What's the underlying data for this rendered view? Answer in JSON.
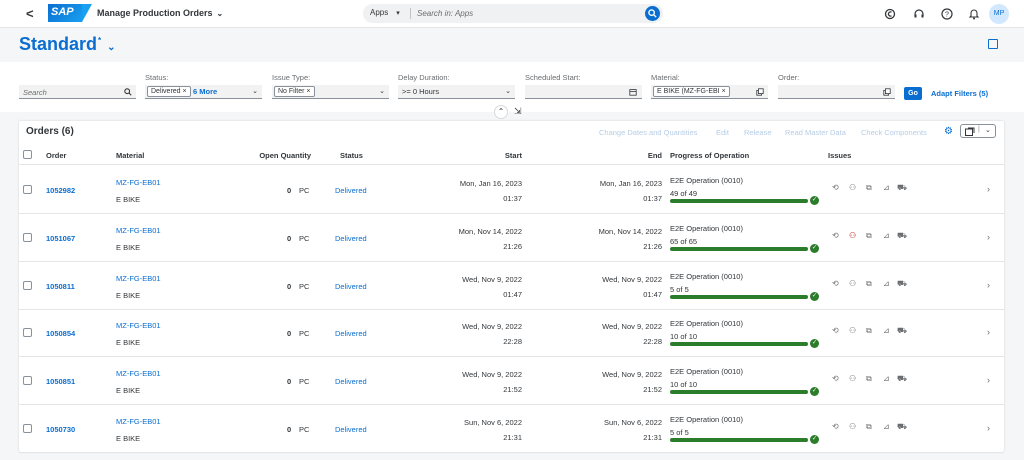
{
  "shell": {
    "back": "<",
    "logo": "SAP",
    "app_title": "Manage Production Orders",
    "search_scope": "Apps",
    "search_placeholder": "Search in: Apps",
    "user_initials": "MP"
  },
  "variant": {
    "title": "Standard",
    "modified": "*"
  },
  "filters": {
    "search_placeholder": "Search",
    "status_label": "Status:",
    "status_token": "Delivered",
    "status_more": "6 More",
    "issue_label": "Issue Type:",
    "issue_token": "No Filter",
    "delay_label": "Delay Duration:",
    "delay_value": ">= 0 Hours",
    "sched_label": "Scheduled Start:",
    "material_label": "Material:",
    "material_token": "E BIKE (MZ-FG-EBI",
    "order_label": "Order:",
    "go": "Go",
    "adapt": "Adapt Filters (5)"
  },
  "table": {
    "title": "Orders (6)",
    "toolbar": [
      "Change Dates and Quantities",
      "Edit",
      "Release",
      "Read Master Data",
      "Check Components"
    ],
    "columns": {
      "order": "Order",
      "material": "Material",
      "open_qty": "Open Quantity",
      "status": "Status",
      "start": "Start",
      "end": "End",
      "progress": "Progress of Operation",
      "issues": "Issues"
    },
    "rows": [
      {
        "order": "1052982",
        "material_id": "MZ-FG-EB01",
        "material_name": "E BIKE",
        "qty": "0",
        "unit": "PC",
        "status": "Delivered",
        "start_date": "Mon, Jan 16, 2023",
        "start_time": "01:37",
        "end_date": "Mon, Jan 16, 2023",
        "end_time": "01:37",
        "op": "E2E Operation (0010)",
        "op_count": "49 of 49",
        "progress": 1.0,
        "red_issue": false
      },
      {
        "order": "1051067",
        "material_id": "MZ-FG-EB01",
        "material_name": "E BIKE",
        "qty": "0",
        "unit": "PC",
        "status": "Delivered",
        "start_date": "Mon, Nov 14, 2022",
        "start_time": "21:26",
        "end_date": "Mon, Nov 14, 2022",
        "end_time": "21:26",
        "op": "E2E Operation (0010)",
        "op_count": "65 of 65",
        "progress": 1.0,
        "red_issue": true
      },
      {
        "order": "1050811",
        "material_id": "MZ-FG-EB01",
        "material_name": "E BIKE",
        "qty": "0",
        "unit": "PC",
        "status": "Delivered",
        "start_date": "Wed, Nov 9, 2022",
        "start_time": "01:47",
        "end_date": "Wed, Nov 9, 2022",
        "end_time": "01:47",
        "op": "E2E Operation (0010)",
        "op_count": "5 of 5",
        "progress": 1.0,
        "red_issue": false
      },
      {
        "order": "1050854",
        "material_id": "MZ-FG-EB01",
        "material_name": "E BIKE",
        "qty": "0",
        "unit": "PC",
        "status": "Delivered",
        "start_date": "Wed, Nov 9, 2022",
        "start_time": "22:28",
        "end_date": "Wed, Nov 9, 2022",
        "end_time": "22:28",
        "op": "E2E Operation (0010)",
        "op_count": "10 of 10",
        "progress": 1.0,
        "red_issue": false
      },
      {
        "order": "1050851",
        "material_id": "MZ-FG-EB01",
        "material_name": "E BIKE",
        "qty": "0",
        "unit": "PC",
        "status": "Delivered",
        "start_date": "Wed, Nov 9, 2022",
        "start_time": "21:52",
        "end_date": "Wed, Nov 9, 2022",
        "end_time": "21:52",
        "op": "E2E Operation (0010)",
        "op_count": "10 of 10",
        "progress": 1.0,
        "red_issue": false
      },
      {
        "order": "1050730",
        "material_id": "MZ-FG-EB01",
        "material_name": "E BIKE",
        "qty": "0",
        "unit": "PC",
        "status": "Delivered",
        "start_date": "Sun, Nov 6, 2022",
        "start_time": "21:31",
        "end_date": "Sun, Nov 6, 2022",
        "end_time": "21:31",
        "op": "E2E Operation (0010)",
        "op_count": "5 of 5",
        "progress": 1.0,
        "red_issue": false
      }
    ]
  },
  "colors": {
    "accent": "#0a6ed1",
    "progress": "#2b7d2b",
    "issue_red": "#bb0000"
  }
}
